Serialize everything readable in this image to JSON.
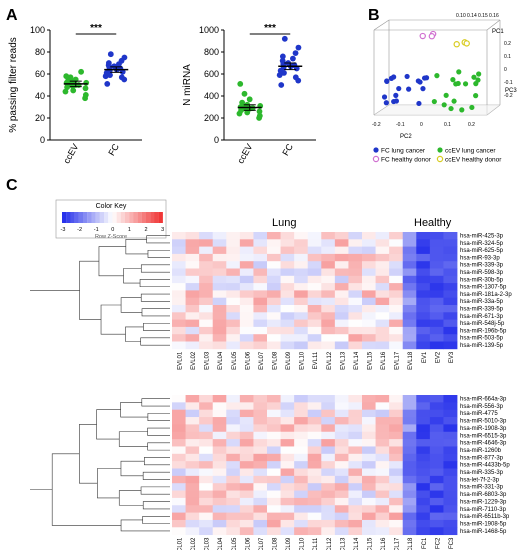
{
  "panel_labels": [
    "A",
    "B",
    "C"
  ],
  "chart_data": [
    {
      "panel": "A",
      "type": "scatter",
      "ylabel": "% passing filter reads",
      "categories": [
        "ccEV",
        "FC"
      ],
      "yticks": [
        "0",
        "20",
        "40",
        "60",
        "80",
        "100"
      ],
      "ylim": [
        0,
        100
      ],
      "significance": "***",
      "series": [
        {
          "category": "ccEV",
          "color": "#2db82d",
          "values": [
            38,
            41,
            44,
            45,
            47,
            48,
            49,
            50,
            50,
            51,
            52,
            52,
            53,
            54,
            55,
            57,
            58,
            62
          ],
          "mean": 51,
          "sem_low": 48.5,
          "sem_high": 53.5
        },
        {
          "category": "FC",
          "color": "#1f36c9",
          "values": [
            51,
            55,
            57,
            58,
            59,
            61,
            62,
            63,
            64,
            65,
            66,
            67,
            68,
            69,
            70,
            72,
            75,
            78
          ],
          "mean": 64,
          "sem_low": 61.5,
          "sem_high": 66.5
        }
      ]
    },
    {
      "panel": "A",
      "type": "scatter",
      "ylabel": "N miRNA",
      "categories": [
        "ccEV",
        "FC"
      ],
      "yticks": [
        "0",
        "200",
        "400",
        "600",
        "800",
        "1000"
      ],
      "ylim": [
        0,
        1000
      ],
      "significance": "***",
      "series": [
        {
          "category": "ccEV",
          "color": "#2db82d",
          "values": [
            200,
            220,
            240,
            250,
            260,
            270,
            280,
            285,
            290,
            295,
            300,
            310,
            320,
            340,
            370,
            420,
            510
          ],
          "mean": 295,
          "sem_low": 270,
          "sem_high": 320
        },
        {
          "category": "FC",
          "color": "#1f36c9",
          "values": [
            500,
            540,
            570,
            590,
            610,
            630,
            650,
            660,
            670,
            680,
            690,
            700,
            720,
            740,
            760,
            790,
            840,
            920
          ],
          "mean": 670,
          "sem_low": 640,
          "sem_high": 700
        }
      ]
    },
    {
      "panel": "B",
      "type": "scatter",
      "axis_labels": {
        "pc1": "PC1",
        "pc2": "PC2",
        "pc3": "PC3"
      },
      "pc1_ticks": [
        "0.10",
        "0.14",
        "0.15",
        "0.16"
      ],
      "pc2_ticks": [
        "-0.2",
        "-0.1",
        "0",
        "0.1",
        "0.2"
      ],
      "pc3_ticks": [
        "0.2",
        "0.1",
        "0",
        "-0.1",
        "-0.2"
      ],
      "legend": [
        {
          "label": "FC lung cancer",
          "color": "#1f36c9"
        },
        {
          "label": "FC healthy donor",
          "color": "#d070d0"
        },
        {
          "label": "ccEV lung cancer",
          "color": "#2db82d"
        },
        {
          "label": "ccEV healthy donor",
          "color": "#d8cc20"
        }
      ],
      "point_counts": {
        "fc_lung": 18,
        "fc_healthy": 3,
        "ccev_lung": 18,
        "ccev_healthy": 3
      }
    },
    {
      "panel": "C",
      "type": "heatmap",
      "color_key": {
        "title": "Color Key",
        "subtitle": "Row Z-Score",
        "ticks": [
          "-3",
          "-2",
          "-1",
          "0",
          "1",
          "2",
          "3"
        ]
      },
      "top": {
        "group_labels": [
          "Lung",
          "Healthy"
        ],
        "columns": [
          "EVL01",
          "EVL02",
          "EVL03",
          "EVL04",
          "EVL05",
          "EVL06",
          "EVL07",
          "EVL08",
          "EVL09",
          "EVL10",
          "EVL11",
          "EVL12",
          "EVL13",
          "EVL14",
          "EVL15",
          "EVL16",
          "EVL17",
          "EVL18",
          "EV1",
          "EV2",
          "EV3"
        ],
        "rows": [
          "hsa-miR-425-3p",
          "hsa-miR-324-5p",
          "hsa-miR-625-5p",
          "hsa-miR-93-3p",
          "hsa-miR-339-3p",
          "hsa-miR-598-3p",
          "hsa-miR-30b-5p",
          "hsa-miR-1307-5p",
          "hsa-miR-181a-2-3p",
          "hsa-miR-33a-5p",
          "hsa-miR-339-5p",
          "hsa-miR-671-3p",
          "hsa-miR-548j-5p",
          "hsa-miR-196b-5p",
          "hsa-miR-503-5p",
          "hsa-miR-139-5p"
        ]
      },
      "bottom": {
        "columns": [
          "FCL01",
          "FCL02",
          "FCL03",
          "FCL04",
          "FCL05",
          "FCL06",
          "FCL07",
          "FCL08",
          "FCL09",
          "FCL10",
          "FCL11",
          "FCL12",
          "FCL13",
          "FCL14",
          "FCL15",
          "FCL16",
          "FCL17",
          "FCL18",
          "FC1",
          "FC2",
          "FC3"
        ],
        "rows": [
          "hsa-miR-664a-3p",
          "hsa-miR-556-3p",
          "hsa-miR-4775",
          "hsa-miR-5010-3p",
          "hsa-miR-1908-3p",
          "hsa-miR-6515-3p",
          "hsa-miR-4646-3p",
          "hsa-miR-1260b",
          "hsa-miR-877-3p",
          "hsa-miR-4433b-5p",
          "hsa-miR-335-3p",
          "hsa-let-7f-2-3p",
          "hsa-miR-331-3p",
          "hsa-miR-6803-3p",
          "hsa-miR-1229-3p",
          "hsa-miR-7110-3p",
          "hsa-miR-6511b-3p",
          "hsa-miR-1908-5p",
          "hsa-miR-1468-5p"
        ]
      }
    }
  ]
}
